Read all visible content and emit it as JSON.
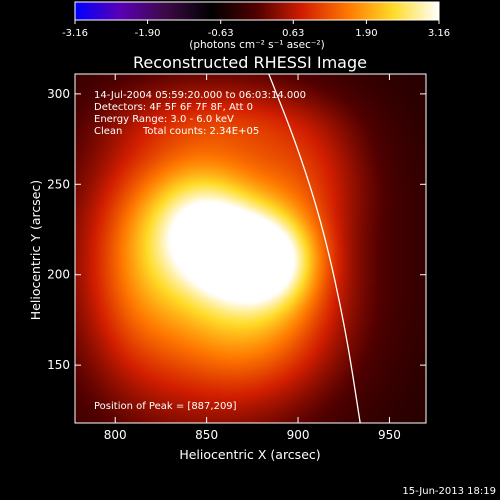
{
  "chart_data": {
    "type": "heatmap",
    "title": "Reconstructed RHESSI Image",
    "xlabel": "Heliocentric X (arcsec)",
    "ylabel": "Heliocentric Y (arcsec)",
    "xlim": [
      778,
      970
    ],
    "ylim": [
      118,
      311
    ],
    "x_ticks": [
      800,
      850,
      900,
      950
    ],
    "y_ticks": [
      150,
      200,
      250,
      300
    ],
    "colorbar": {
      "unit_label": "(photons cm⁻² s⁻¹ asec⁻²)",
      "ticks": [
        "-3.16",
        "-1.90",
        "-0.63",
        "0.63",
        "1.90",
        "3.16"
      ],
      "range": [
        -3.16,
        3.16
      ],
      "colormap": [
        "#0000ff",
        "#5a00b4",
        "#3c0a46",
        "#000000",
        "#500000",
        "#d21e00",
        "#ff7800",
        "#ffdc28",
        "#ffffff"
      ]
    },
    "annotations": {
      "time_range": "14-Jul-2004 05:59:20.000 to 06:03:14.000",
      "detectors": "Detectors: 4F 5F 6F 7F 8F, Att 0",
      "energy": "Energy Range: 3.0 - 6.0 keV",
      "clean": "Clean",
      "counts": "Total counts: 2.34E+05",
      "peak": "Position of Peak = [887,209]"
    },
    "peak_position": [
      887,
      209
    ],
    "sources": [
      {
        "x": 846,
        "y": 226,
        "sx": 20,
        "sy": 24,
        "amp": 0.55
      },
      {
        "x": 887,
        "y": 209,
        "sx": 18,
        "sy": 18,
        "amp": 0.62
      },
      {
        "x": 866,
        "y": 213,
        "sx": 16,
        "sy": 18,
        "amp": 0.3
      },
      {
        "x": 850,
        "y": 205,
        "sx": 46,
        "sy": 58,
        "amp": 0.55
      },
      {
        "x": 880,
        "y": 175,
        "sx": 30,
        "sy": 28,
        "amp": 0.28
      },
      {
        "x": 905,
        "y": 255,
        "sx": 24,
        "sy": 24,
        "amp": 0.2
      },
      {
        "x": 812,
        "y": 205,
        "sx": 18,
        "sy": 40,
        "amp": 0.18
      },
      {
        "x": 860,
        "y": 285,
        "sx": 40,
        "sy": 14,
        "amp": 0.15
      },
      {
        "x": 850,
        "y": 215,
        "sx": 110,
        "sy": 110,
        "amp": 0.16
      }
    ],
    "background_level": -0.62,
    "limb_curve": [
      [
        884,
        311
      ],
      [
        900,
        270
      ],
      [
        914,
        225
      ],
      [
        926,
        170
      ],
      [
        934,
        118
      ]
    ]
  },
  "footer": {
    "date": "15-Jun-2013 18:19"
  }
}
